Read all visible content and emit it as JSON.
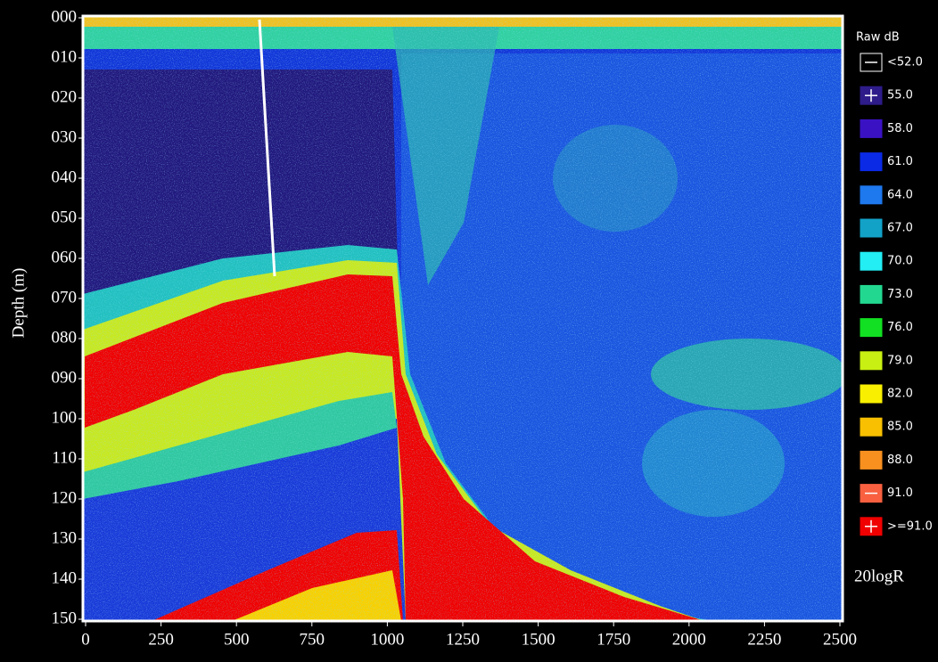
{
  "axes": {
    "y_label": "Depth (m)",
    "y_ticks": [
      "000",
      "010",
      "020",
      "030",
      "040",
      "050",
      "060",
      "070",
      "080",
      "090",
      "100",
      "110",
      "120",
      "130",
      "140",
      "150"
    ],
    "x_ticks": [
      "0",
      "250",
      "500",
      "750",
      "1000",
      "1250",
      "1500",
      "1750",
      "2000",
      "2250",
      "2500"
    ]
  },
  "legend": {
    "title": "Raw dB",
    "entries": [
      {
        "label": "<52.0",
        "color": "#000000"
      },
      {
        "label": "55.0",
        "color": "#2e1c8a"
      },
      {
        "label": "58.0",
        "color": "#3a12c4"
      },
      {
        "label": "61.0",
        "color": "#0a2ae6"
      },
      {
        "label": "64.0",
        "color": "#1e78ee"
      },
      {
        "label": "67.0",
        "color": "#12a2c8"
      },
      {
        "label": "70.0",
        "color": "#22eef4"
      },
      {
        "label": "73.0",
        "color": "#22d890"
      },
      {
        "label": "76.0",
        "color": "#12e022"
      },
      {
        "label": "79.0",
        "color": "#c8f012"
      },
      {
        "label": "82.0",
        "color": "#f8f000"
      },
      {
        "label": "85.0",
        "color": "#f8c000"
      },
      {
        "label": "88.0",
        "color": "#f89020"
      },
      {
        "label": "91.0",
        "color": "#f86040"
      },
      {
        "label": ">=91.0",
        "color": "#f00000"
      }
    ],
    "footer": "20logR"
  }
}
